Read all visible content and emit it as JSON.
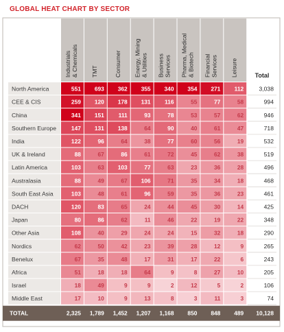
{
  "chart_data": {
    "type": "heatmap",
    "title": "GLOBAL HEAT CHART BY SECTOR",
    "columns": [
      "Industrials & Chemicals",
      "TMT",
      "Consumer",
      "Energy, Mining & Utilities",
      "Business Services",
      "Pharma, Medical & Biotech",
      "Financial Services",
      "Leisure"
    ],
    "total_label": "Total",
    "rows": [
      {
        "label": "North America",
        "values": [
          551,
          693,
          362,
          355,
          340,
          354,
          271,
          112
        ],
        "total": "3,038"
      },
      {
        "label": "CEE & CIS",
        "values": [
          259,
          120,
          178,
          131,
          116,
          55,
          77,
          58
        ],
        "total": "994"
      },
      {
        "label": "China",
        "values": [
          341,
          151,
          111,
          93,
          78,
          53,
          57,
          62
        ],
        "total": "946"
      },
      {
        "label": "Southern Europe",
        "values": [
          147,
          131,
          138,
          64,
          90,
          40,
          61,
          47
        ],
        "total": "718"
      },
      {
        "label": "India",
        "values": [
          122,
          96,
          64,
          38,
          77,
          60,
          56,
          19
        ],
        "total": "532"
      },
      {
        "label": "UK & Ireland",
        "values": [
          88,
          67,
          86,
          61,
          72,
          45,
          62,
          38
        ],
        "total": "519"
      },
      {
        "label": "Latin America",
        "values": [
          103,
          63,
          103,
          77,
          63,
          23,
          36,
          28
        ],
        "total": "496"
      },
      {
        "label": "Australasia",
        "values": [
          88,
          49,
          67,
          106,
          71,
          35,
          34,
          18
        ],
        "total": "468"
      },
      {
        "label": "South East Asia",
        "values": [
          103,
          48,
          61,
          96,
          59,
          35,
          36,
          23
        ],
        "total": "461"
      },
      {
        "label": "DACH",
        "values": [
          120,
          83,
          65,
          24,
          44,
          45,
          30,
          14
        ],
        "total": "425"
      },
      {
        "label": "Japan",
        "values": [
          80,
          86,
          62,
          11,
          46,
          22,
          19,
          22
        ],
        "total": "348"
      },
      {
        "label": "Other Asia",
        "values": [
          108,
          40,
          29,
          24,
          24,
          15,
          32,
          18
        ],
        "total": "290"
      },
      {
        "label": "Nordics",
        "values": [
          62,
          50,
          42,
          23,
          39,
          28,
          12,
          9
        ],
        "total": "265"
      },
      {
        "label": "Benelux",
        "values": [
          67,
          35,
          48,
          17,
          31,
          17,
          22,
          6
        ],
        "total": "243"
      },
      {
        "label": "Africa",
        "values": [
          51,
          18,
          18,
          64,
          9,
          8,
          27,
          10
        ],
        "total": "205"
      },
      {
        "label": "Israel",
        "values": [
          18,
          49,
          9,
          9,
          2,
          12,
          5,
          2
        ],
        "total": "106"
      },
      {
        "label": "Middle East",
        "values": [
          17,
          10,
          9,
          13,
          8,
          3,
          11,
          3
        ],
        "total": "74"
      }
    ],
    "footer": {
      "label": "TOTAL",
      "values": [
        "2,325",
        "1,789",
        "1,452",
        "1,207",
        "1,168",
        "850",
        "848",
        "489"
      ],
      "total": "10,128"
    },
    "colors": {
      "title": "#d2232a",
      "header_bg": "#c9c4c0",
      "label_bg": "#ece9e6",
      "footer_bg": "#6e5f56",
      "heat_high": "#d0021b",
      "heat_low": "#fbe6e8"
    }
  }
}
